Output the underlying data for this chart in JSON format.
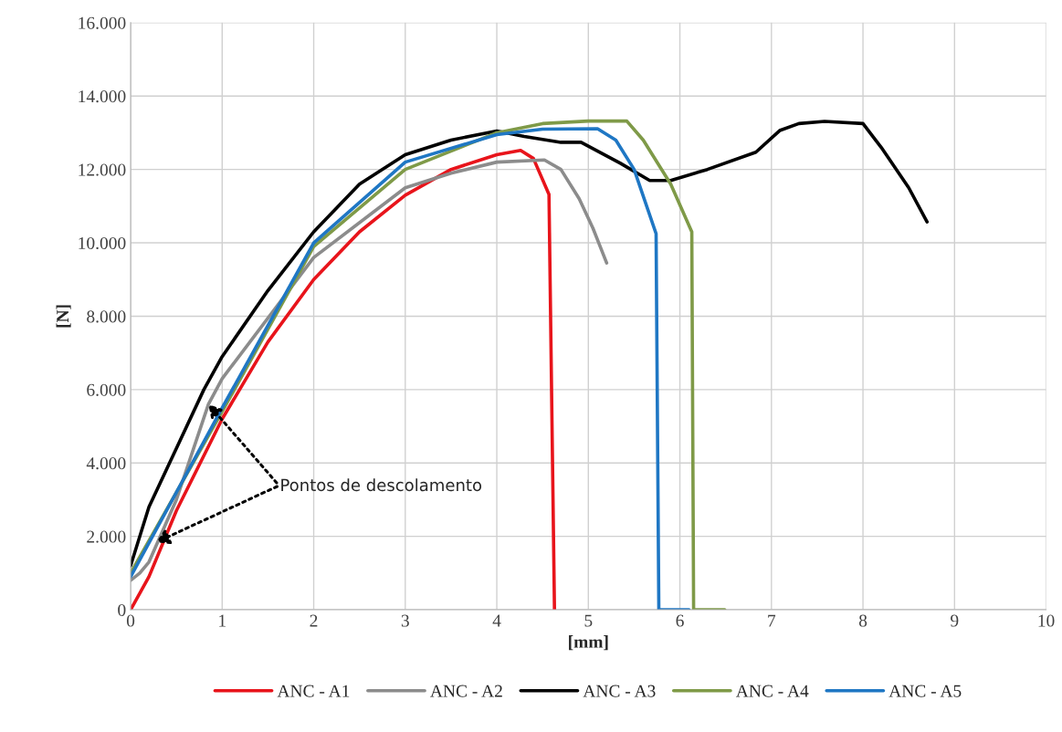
{
  "chart_data": {
    "type": "line",
    "xlabel": "[mm]",
    "ylabel": "[N]",
    "xlim": [
      0,
      10
    ],
    "xticks": [
      0,
      1,
      2,
      3,
      4,
      5,
      6,
      7,
      8,
      9,
      10
    ],
    "ylim": [
      0,
      16000
    ],
    "yticks": [
      {
        "value": 0,
        "label": "0"
      },
      {
        "value": 2000,
        "label": "2.000"
      },
      {
        "value": 4000,
        "label": "4.000"
      },
      {
        "value": 6000,
        "label": "6.000"
      },
      {
        "value": 8000,
        "label": "8.000"
      },
      {
        "value": 10000,
        "label": "10.000"
      },
      {
        "value": 12000,
        "label": "12.000"
      },
      {
        "value": 14000,
        "label": "14.000"
      },
      {
        "value": 16000,
        "label": "16.000"
      }
    ],
    "grid": true,
    "legend": "bottom",
    "marker": "none",
    "line_style": "solid",
    "annotations": [
      {
        "text": "Pontos de descolamento",
        "x": 0.85,
        "y": 5600
      }
    ],
    "series": [
      {
        "name": "ANC - A1",
        "color": "#e8141b",
        "x": [
          0,
          0.2,
          0.5,
          1,
          1.5,
          2,
          2.5,
          3,
          3.5,
          4,
          4.26,
          4.4,
          4.57,
          4.63
        ],
        "values": [
          0,
          900,
          2700,
          5200,
          7300,
          9000,
          10300,
          11300,
          12000,
          12400,
          12520,
          12300,
          11320,
          0
        ]
      },
      {
        "name": "ANC - A2",
        "color": "#8c8c8c",
        "x": [
          0,
          0.1,
          0.2,
          0.5,
          0.85,
          1,
          2,
          3,
          3.5,
          4,
          4.52,
          4.7,
          4.9,
          5.05,
          5.2
        ],
        "values": [
          800,
          1000,
          1300,
          3000,
          5600,
          6300,
          9600,
          11500,
          11900,
          12200,
          12260,
          12000,
          11200,
          10400,
          9450
        ]
      },
      {
        "name": "ANC - A3",
        "color": "#000000",
        "x": [
          0,
          0.2,
          0.5,
          0.8,
          1,
          1.5,
          2,
          2.5,
          3,
          3.5,
          4,
          4.3,
          4.7,
          4.92,
          5.35,
          5.67,
          5.9,
          6.3,
          6.83,
          7.09,
          7.3,
          7.58,
          8.0,
          8.2,
          8.5,
          8.7
        ],
        "values": [
          1200,
          2800,
          4400,
          6000,
          6900,
          8700,
          10300,
          11600,
          12400,
          12800,
          13050,
          12900,
          12740,
          12740,
          12170,
          11700,
          11700,
          12000,
          12470,
          13060,
          13250,
          13310,
          13250,
          12600,
          11500,
          10570
        ]
      },
      {
        "name": "ANC - A4",
        "color": "#7f9a48",
        "x": [
          0,
          1,
          2,
          3,
          4,
          4.5,
          5,
          5.42,
          5.6,
          5.9,
          6.13,
          6.15,
          6.49
        ],
        "values": [
          1000,
          5400,
          9900,
          12000,
          13000,
          13250,
          13320,
          13320,
          12800,
          11600,
          10300,
          0,
          0
        ]
      },
      {
        "name": "ANC - A5",
        "color": "#1f77c4",
        "x": [
          0,
          1,
          2,
          3,
          4,
          4.5,
          5.1,
          5.3,
          5.5,
          5.74,
          5.77,
          6.1
        ],
        "values": [
          900,
          5500,
          10000,
          12200,
          12950,
          13100,
          13110,
          12800,
          12000,
          10250,
          0,
          0
        ]
      }
    ]
  }
}
